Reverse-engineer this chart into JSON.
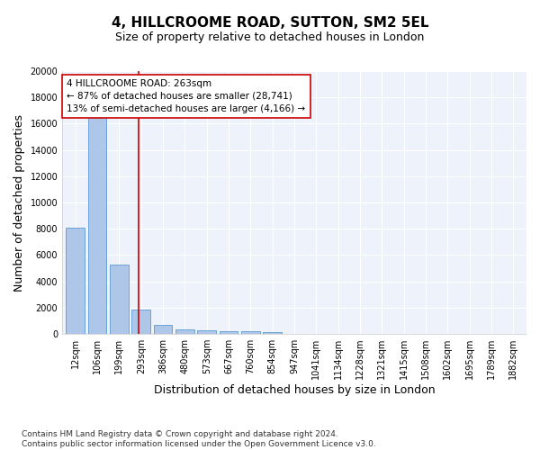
{
  "title": "4, HILLCROOME ROAD, SUTTON, SM2 5EL",
  "subtitle": "Size of property relative to detached houses in London",
  "xlabel": "Distribution of detached houses by size in London",
  "ylabel": "Number of detached properties",
  "categories": [
    "12sqm",
    "106sqm",
    "199sqm",
    "293sqm",
    "386sqm",
    "480sqm",
    "573sqm",
    "667sqm",
    "760sqm",
    "854sqm",
    "947sqm",
    "1041sqm",
    "1134sqm",
    "1228sqm",
    "1321sqm",
    "1415sqm",
    "1508sqm",
    "1602sqm",
    "1695sqm",
    "1789sqm",
    "1882sqm"
  ],
  "values": [
    8100,
    16500,
    5300,
    1850,
    700,
    380,
    290,
    220,
    190,
    160,
    0,
    0,
    0,
    0,
    0,
    0,
    0,
    0,
    0,
    0,
    0
  ],
  "bar_color": "#aec6e8",
  "bar_edge_color": "#5b9bd5",
  "vline_x": 2.87,
  "vline_color": "#cc0000",
  "annotation_text": "4 HILLCROOME ROAD: 263sqm\n← 87% of detached houses are smaller (28,741)\n13% of semi-detached houses are larger (4,166) →",
  "annotation_box_color": "#ffffff",
  "annotation_box_edge": "#cc0000",
  "footnote": "Contains HM Land Registry data © Crown copyright and database right 2024.\nContains public sector information licensed under the Open Government Licence v3.0.",
  "ylim": [
    0,
    20000
  ],
  "yticks": [
    0,
    2000,
    4000,
    6000,
    8000,
    10000,
    12000,
    14000,
    16000,
    18000,
    20000
  ],
  "bg_color": "#eef2fa",
  "grid_color": "#ffffff",
  "fig_bg_color": "#ffffff",
  "title_fontsize": 11,
  "subtitle_fontsize": 9,
  "axis_label_fontsize": 9,
  "tick_fontsize": 7,
  "annotation_fontsize": 7.5,
  "footnote_fontsize": 6.5
}
